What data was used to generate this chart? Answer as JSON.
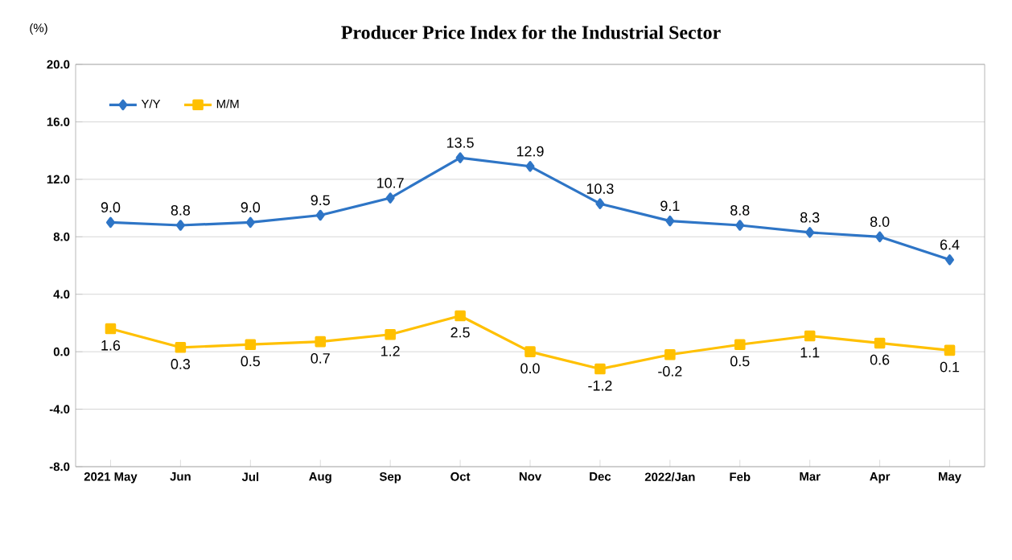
{
  "chart_data": {
    "type": "line",
    "title": "Producer Price Index for the Industrial Sector",
    "ylabel": "(%)",
    "categories": [
      "2021 May",
      "Jun",
      "Jul",
      "Aug",
      "Sep",
      "Oct",
      "Nov",
      "Dec",
      "2022/Jan",
      "Feb",
      "Mar",
      "Apr",
      "May"
    ],
    "series": [
      {
        "name": "Y/Y",
        "color": "#2e75c6",
        "marker": "diamond",
        "values": [
          9.0,
          8.8,
          9.0,
          9.5,
          10.7,
          13.5,
          12.9,
          10.3,
          9.1,
          8.8,
          8.3,
          8.0,
          6.4
        ],
        "value_labels": [
          "9.0",
          "8.8",
          "9.0",
          "9.5",
          "10.7",
          "13.5",
          "12.9",
          "10.3",
          "9.1",
          "8.8",
          "8.3",
          "8.0",
          "6.4"
        ]
      },
      {
        "name": "M/M",
        "color": "#ffc000",
        "marker": "square",
        "values": [
          1.6,
          0.3,
          0.5,
          0.7,
          1.2,
          2.5,
          0.0,
          -1.2,
          -0.2,
          0.5,
          1.1,
          0.6,
          0.1
        ],
        "value_labels": [
          "1.6",
          "0.3",
          "0.5",
          "0.7",
          "1.2",
          "2.5",
          "0.0",
          "-1.2",
          "-0.2",
          "0.5",
          "1.1",
          "0.6",
          "0.1"
        ]
      }
    ],
    "ylim": [
      -8,
      20
    ],
    "yticks": [
      {
        "value": -8,
        "label": "-8.0"
      },
      {
        "value": -4,
        "label": "-4.0"
      },
      {
        "value": 0,
        "label": "0.0"
      },
      {
        "value": 4,
        "label": "4.0"
      },
      {
        "value": 8,
        "label": "8.0"
      },
      {
        "value": 12,
        "label": "12.0"
      },
      {
        "value": 16,
        "label": "16.0"
      },
      {
        "value": 20,
        "label": "20.0"
      }
    ],
    "grid": "y",
    "legend": "top left",
    "line_style": "solid"
  }
}
